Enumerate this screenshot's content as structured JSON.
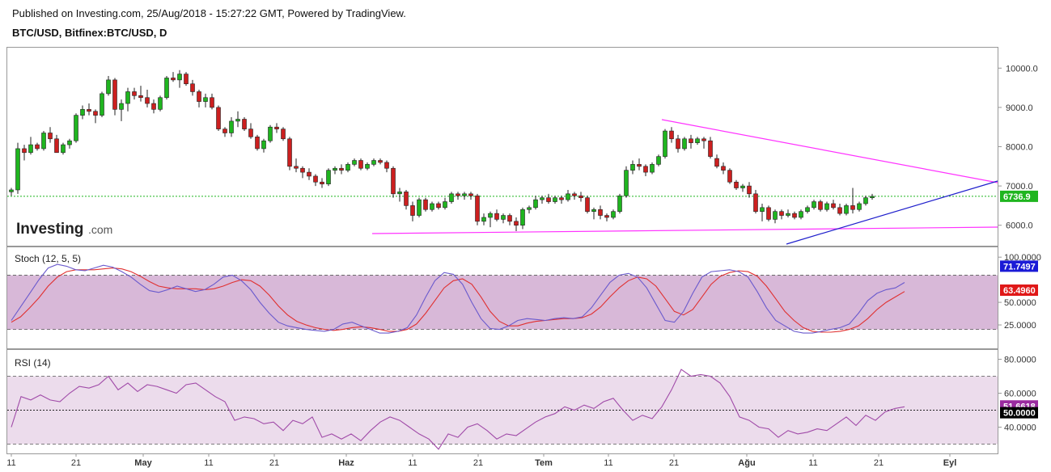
{
  "header": {
    "published": "Published on Investing.com, 25/Aug/2018 - 15:27:22 GMT, Powered by TradingView.",
    "symbol": "BTC/USD, Bitfinex:BTC/USD, D"
  },
  "logo": {
    "main": "Investing",
    "suffix": ".com"
  },
  "colors": {
    "up": "#1fb51f",
    "down": "#cc1f1f",
    "trend_magenta": "#ff33ff",
    "trend_blue": "#1f1fcc",
    "stoch_k": "#6a5acd",
    "stoch_d": "#e03030",
    "rsi": "#a04aa8",
    "current_tag": "#1fb51f"
  },
  "chart_data": [
    {
      "type": "candlestick",
      "pane": "price",
      "ylim": [
        5500,
        10500
      ],
      "y_ticks": [
        "10000.0",
        "9000.0",
        "8000.0",
        "7000.0",
        "6000.0"
      ],
      "current_value": "6736.9",
      "x_tick_labels": [
        "11",
        "21",
        "May",
        "11",
        "21",
        "Haz",
        "11",
        "21",
        "Tem",
        "11",
        "21",
        "Ağu",
        "11",
        "21",
        "Eyl"
      ],
      "candles": [
        [
          6850,
          6950,
          6750,
          6900
        ],
        [
          6900,
          8100,
          6800,
          7950
        ],
        [
          7950,
          8050,
          7650,
          7850
        ],
        [
          7850,
          8250,
          7800,
          8050
        ],
        [
          8050,
          8100,
          7900,
          7950
        ],
        [
          7950,
          8400,
          7900,
          8350
        ],
        [
          8350,
          8500,
          8100,
          8200
        ],
        [
          8200,
          8300,
          7850,
          7850
        ],
        [
          7850,
          8100,
          7800,
          8050
        ],
        [
          8050,
          8200,
          7950,
          8150
        ],
        [
          8150,
          8850,
          8100,
          8800
        ],
        [
          8800,
          9050,
          8700,
          8950
        ],
        [
          8950,
          9100,
          8800,
          8900
        ],
        [
          8900,
          8950,
          8600,
          8800
        ],
        [
          8800,
          9400,
          8750,
          9350
        ],
        [
          9350,
          9800,
          9300,
          9700
        ],
        [
          9700,
          9750,
          8800,
          8950
        ],
        [
          8950,
          9200,
          8650,
          9100
        ],
        [
          9100,
          9500,
          8900,
          9400
        ],
        [
          9400,
          9500,
          9200,
          9300
        ],
        [
          9300,
          9550,
          9150,
          9250
        ],
        [
          9250,
          9450,
          9000,
          9100
        ],
        [
          9100,
          9200,
          8850,
          8950
        ],
        [
          8950,
          9300,
          8900,
          9250
        ],
        [
          9250,
          9800,
          9200,
          9750
        ],
        [
          9750,
          9900,
          9650,
          9700
        ],
        [
          9700,
          9950,
          9500,
          9850
        ],
        [
          9850,
          9900,
          9550,
          9600
        ],
        [
          9600,
          9700,
          9300,
          9400
        ],
        [
          9400,
          9450,
          9000,
          9150
        ],
        [
          9150,
          9350,
          9000,
          9250
        ],
        [
          9250,
          9350,
          8950,
          9000
        ],
        [
          9000,
          9050,
          8400,
          8450
        ],
        [
          8450,
          8500,
          8250,
          8350
        ],
        [
          8350,
          8750,
          8250,
          8650
        ],
        [
          8650,
          8900,
          8500,
          8700
        ],
        [
          8700,
          8750,
          8400,
          8450
        ],
        [
          8450,
          8600,
          8200,
          8250
        ],
        [
          8250,
          8300,
          7900,
          7950
        ],
        [
          7950,
          8200,
          7850,
          8150
        ],
        [
          8150,
          8550,
          8100,
          8500
        ],
        [
          8500,
          8600,
          8350,
          8450
        ],
        [
          8450,
          8500,
          8150,
          8200
        ],
        [
          8200,
          8250,
          7400,
          7500
        ],
        [
          7500,
          7700,
          7350,
          7450
        ],
        [
          7450,
          7500,
          7200,
          7350
        ],
        [
          7350,
          7450,
          7150,
          7250
        ],
        [
          7250,
          7300,
          7000,
          7100
        ],
        [
          7100,
          7200,
          6950,
          7050
        ],
        [
          7050,
          7450,
          7000,
          7400
        ],
        [
          7400,
          7500,
          7300,
          7450
        ],
        [
          7450,
          7550,
          7300,
          7400
        ],
        [
          7400,
          7600,
          7350,
          7550
        ],
        [
          7550,
          7700,
          7500,
          7650
        ],
        [
          7650,
          7700,
          7400,
          7450
        ],
        [
          7450,
          7600,
          7400,
          7550
        ],
        [
          7550,
          7700,
          7500,
          7650
        ],
        [
          7650,
          7700,
          7550,
          7600
        ],
        [
          7600,
          7650,
          7350,
          7450
        ],
        [
          7450,
          7500,
          6700,
          6800
        ],
        [
          6800,
          6950,
          6600,
          6850
        ],
        [
          6850,
          6900,
          6400,
          6500
        ],
        [
          6500,
          6600,
          6100,
          6250
        ],
        [
          6250,
          6700,
          6200,
          6650
        ],
        [
          6650,
          6700,
          6350,
          6400
        ],
        [
          6400,
          6600,
          6350,
          6550
        ],
        [
          6550,
          6600,
          6400,
          6450
        ],
        [
          6450,
          6700,
          6400,
          6600
        ],
        [
          6600,
          6850,
          6550,
          6800
        ],
        [
          6800,
          6850,
          6650,
          6750
        ],
        [
          6750,
          6850,
          6650,
          6800
        ],
        [
          6800,
          6850,
          6650,
          6750
        ],
        [
          6750,
          6800,
          6000,
          6100
        ],
        [
          6100,
          6300,
          6000,
          6200
        ],
        [
          6200,
          6350,
          5950,
          6300
        ],
        [
          6300,
          6400,
          6100,
          6150
        ],
        [
          6150,
          6300,
          6050,
          6250
        ],
        [
          6250,
          6300,
          6000,
          6100
        ],
        [
          6100,
          6200,
          5850,
          6000
        ],
        [
          6000,
          6450,
          5900,
          6400
        ],
        [
          6400,
          6500,
          6300,
          6450
        ],
        [
          6450,
          6750,
          6400,
          6650
        ],
        [
          6650,
          6750,
          6550,
          6700
        ],
        [
          6700,
          6800,
          6550,
          6600
        ],
        [
          6600,
          6750,
          6550,
          6700
        ],
        [
          6700,
          6750,
          6550,
          6650
        ],
        [
          6650,
          6900,
          6600,
          6800
        ],
        [
          6800,
          6850,
          6650,
          6750
        ],
        [
          6750,
          6850,
          6600,
          6700
        ],
        [
          6700,
          6750,
          6300,
          6350
        ],
        [
          6350,
          6450,
          6150,
          6400
        ],
        [
          6400,
          6500,
          6150,
          6250
        ],
        [
          6250,
          6300,
          6100,
          6200
        ],
        [
          6200,
          6400,
          6150,
          6350
        ],
        [
          6350,
          6800,
          6300,
          6750
        ],
        [
          6750,
          7500,
          6700,
          7400
        ],
        [
          7400,
          7650,
          7300,
          7550
        ],
        [
          7550,
          7700,
          7400,
          7500
        ],
        [
          7500,
          7550,
          7250,
          7350
        ],
        [
          7350,
          7600,
          7300,
          7550
        ],
        [
          7550,
          7800,
          7500,
          7750
        ],
        [
          7750,
          8450,
          7700,
          8400
        ],
        [
          8400,
          8500,
          8100,
          8200
        ],
        [
          8200,
          8300,
          7850,
          7950
        ],
        [
          7950,
          8250,
          7900,
          8200
        ],
        [
          8200,
          8300,
          7950,
          8100
        ],
        [
          8100,
          8250,
          8050,
          8200
        ],
        [
          8200,
          8250,
          7950,
          8150
        ],
        [
          8150,
          8250,
          7700,
          7750
        ],
        [
          7700,
          7800,
          7450,
          7500
        ],
        [
          7500,
          7600,
          7300,
          7400
        ],
        [
          7400,
          7450,
          7050,
          7100
        ],
        [
          7100,
          7150,
          6900,
          6950
        ],
        [
          6950,
          7050,
          6850,
          7000
        ],
        [
          7000,
          7100,
          6700,
          6800
        ],
        [
          6800,
          6900,
          6300,
          6350
        ],
        [
          6350,
          6550,
          6100,
          6450
        ],
        [
          6450,
          6500,
          6100,
          6150
        ],
        [
          6150,
          6400,
          6050,
          6350
        ],
        [
          6350,
          6400,
          6150,
          6250
        ],
        [
          6250,
          6400,
          6200,
          6300
        ],
        [
          6300,
          6350,
          6150,
          6200
        ],
        [
          6200,
          6400,
          6150,
          6350
        ],
        [
          6350,
          6500,
          6300,
          6450
        ],
        [
          6450,
          6650,
          6400,
          6600
        ],
        [
          6600,
          6650,
          6350,
          6400
        ],
        [
          6400,
          6600,
          6350,
          6550
        ],
        [
          6550,
          6650,
          6400,
          6450
        ],
        [
          6450,
          6550,
          6250,
          6300
        ],
        [
          6300,
          6550,
          6250,
          6500
        ],
        [
          6500,
          6950,
          6300,
          6400
        ],
        [
          6400,
          6600,
          6350,
          6550
        ],
        [
          6550,
          6750,
          6500,
          6700
        ],
        [
          6700,
          6800,
          6650,
          6737
        ]
      ]
    },
    {
      "type": "line",
      "pane": "stochastic",
      "title": "Stoch (12, 5, 5)",
      "ylim": [
        0,
        110
      ],
      "y_ticks": [
        "100.0000",
        "50.0000",
        "25.0000"
      ],
      "bands": [
        20,
        80
      ],
      "series": [
        {
          "name": "%K",
          "value_label": "71.7497",
          "values": [
            30,
            45,
            60,
            75,
            88,
            92,
            90,
            86,
            85,
            88,
            91,
            89,
            84,
            78,
            70,
            63,
            61,
            64,
            68,
            65,
            62,
            64,
            70,
            78,
            80,
            74,
            64,
            50,
            38,
            28,
            24,
            22,
            20,
            19,
            18,
            20,
            26,
            28,
            24,
            20,
            16,
            16,
            18,
            22,
            36,
            56,
            74,
            83,
            81,
            70,
            50,
            32,
            21,
            20,
            24,
            30,
            32,
            31,
            30,
            32,
            33,
            32,
            34,
            44,
            58,
            72,
            80,
            82,
            78,
            66,
            48,
            30,
            28,
            40,
            60,
            78,
            84,
            85,
            86,
            84,
            78,
            62,
            44,
            30,
            24,
            18,
            16,
            16,
            18,
            20,
            22,
            26,
            38,
            52,
            60,
            64,
            66,
            72
          ]
        },
        {
          "name": "%D",
          "value_label": "63.4960",
          "values": [
            28,
            34,
            44,
            55,
            68,
            78,
            84,
            86,
            86,
            86,
            87,
            88,
            87,
            84,
            79,
            73,
            68,
            66,
            65,
            65,
            65,
            64,
            65,
            68,
            72,
            75,
            74,
            68,
            58,
            46,
            36,
            29,
            25,
            22,
            20,
            19,
            20,
            22,
            23,
            22,
            20,
            18,
            18,
            20,
            26,
            38,
            52,
            66,
            74,
            76,
            70,
            56,
            40,
            29,
            24,
            24,
            27,
            29,
            30,
            31,
            32,
            32,
            33,
            37,
            45,
            56,
            66,
            74,
            78,
            76,
            68,
            54,
            40,
            36,
            42,
            56,
            70,
            79,
            83,
            85,
            84,
            79,
            68,
            54,
            40,
            30,
            22,
            18,
            17,
            17,
            18,
            20,
            24,
            32,
            42,
            50,
            56,
            62
          ]
        }
      ]
    },
    {
      "type": "line",
      "pane": "rsi",
      "title": "RSI (14)",
      "ylim": [
        25,
        85
      ],
      "y_ticks": [
        "80.0000",
        "60.0000",
        "40.0000"
      ],
      "bands": [
        30,
        70
      ],
      "midline": 50,
      "series": [
        {
          "name": "RSI",
          "value_label": "51.6618",
          "values": [
            40,
            58,
            56,
            59,
            56,
            55,
            60,
            64,
            63,
            65,
            70,
            62,
            66,
            61,
            65,
            64,
            62,
            60,
            65,
            66,
            62,
            58,
            55,
            44,
            46,
            45,
            42,
            43,
            38,
            44,
            42,
            46,
            34,
            36,
            33,
            36,
            32,
            38,
            43,
            46,
            44,
            40,
            36,
            33,
            27,
            36,
            34,
            40,
            42,
            38,
            33,
            36,
            35,
            39,
            43,
            46,
            48,
            52,
            50,
            53,
            51,
            55,
            57,
            50,
            44,
            47,
            45,
            52,
            62,
            74,
            70,
            71,
            70,
            66,
            58,
            46,
            44,
            40,
            39,
            34,
            38,
            36,
            37,
            39,
            38,
            42,
            46,
            41,
            47,
            44,
            49,
            51,
            52
          ]
        },
        {
          "name": "mid",
          "value_label": "50.0000",
          "values": []
        }
      ]
    }
  ]
}
